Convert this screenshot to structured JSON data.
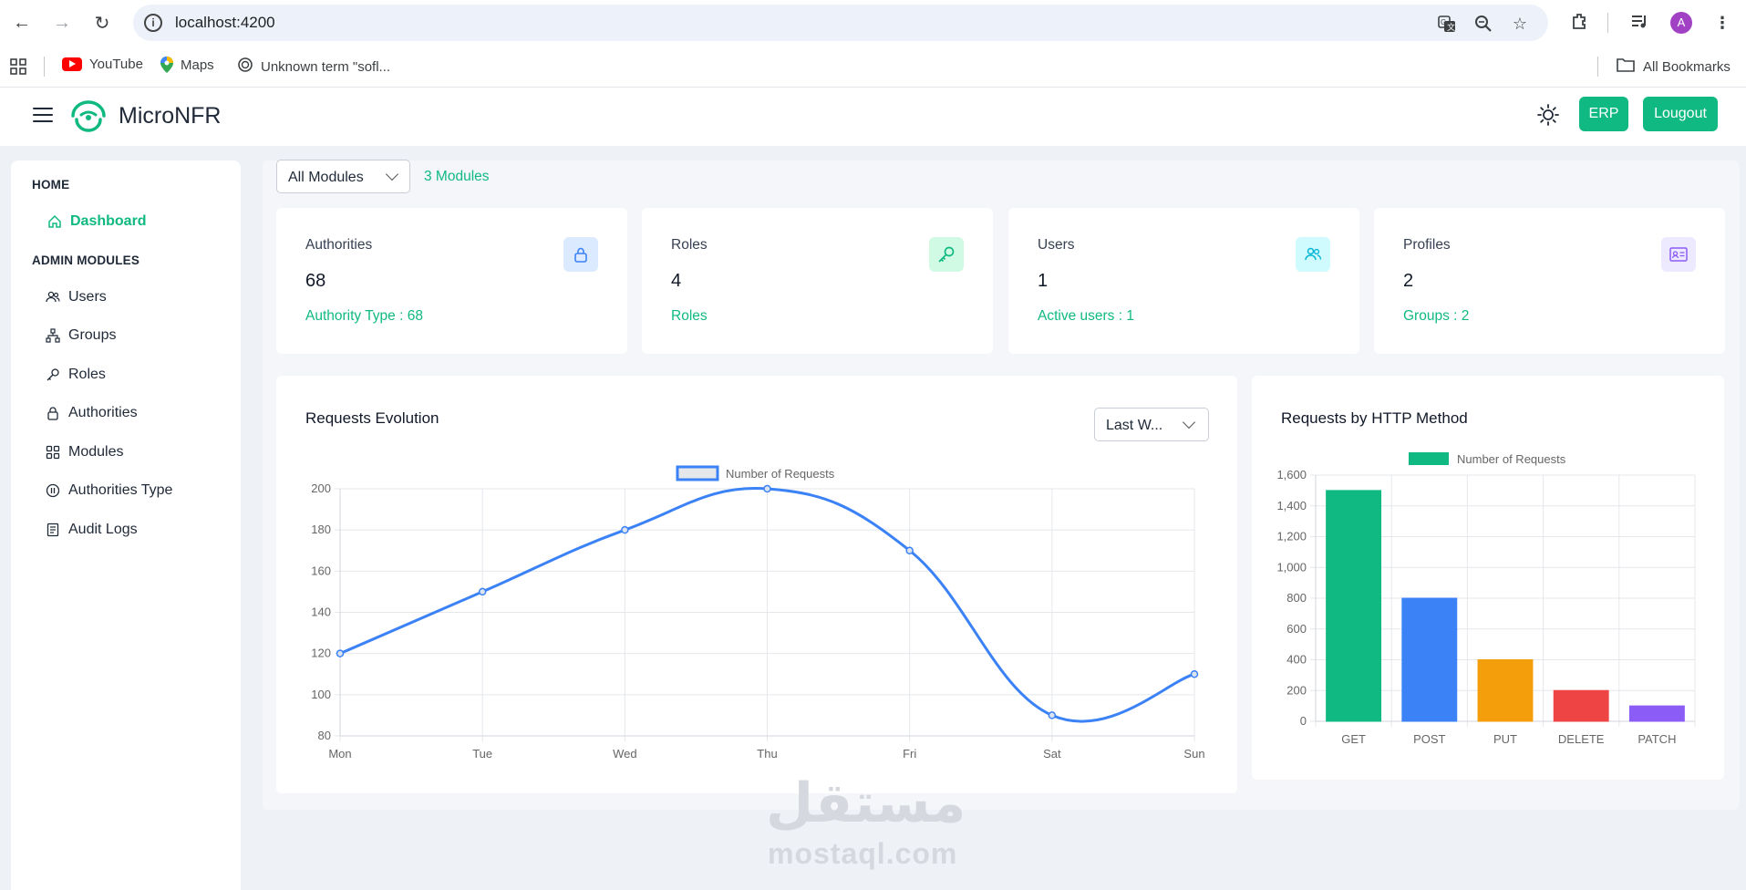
{
  "browser": {
    "url": "localhost:4200",
    "avatar_letter": "A",
    "bookmarks": [
      {
        "label": "YouTube",
        "icon": "youtube-icon"
      },
      {
        "label": "Maps",
        "icon": "maps-icon"
      },
      {
        "label": "Unknown term \"sofl...",
        "icon": "chatgpt-icon"
      }
    ],
    "all_bookmarks": "All Bookmarks"
  },
  "header": {
    "brand": "MicroNFR",
    "erp_label": "ERP",
    "logout_label": "Lougout",
    "accent": "#10b981"
  },
  "sidebar": {
    "home_title": "HOME",
    "dashboard": "Dashboard",
    "admin_title": "ADMIN MODULES",
    "items": [
      {
        "label": "Users",
        "icon": "users-icon"
      },
      {
        "label": "Groups",
        "icon": "groups-icon"
      },
      {
        "label": "Roles",
        "icon": "key-icon"
      },
      {
        "label": "Authorities",
        "icon": "lock-icon"
      },
      {
        "label": "Modules",
        "icon": "grid-icon"
      },
      {
        "label": "Authorities Type",
        "icon": "pause-circle-icon"
      },
      {
        "label": "Audit Logs",
        "icon": "document-icon"
      }
    ]
  },
  "filter": {
    "selected": "All Modules",
    "count": "3 Modules"
  },
  "stats": [
    {
      "label": "Authorities",
      "value": "68",
      "sub": "Authority Type : 68",
      "icon": "lock-icon",
      "badge_bg": "#dbeafe",
      "icon_color": "#3b82f6"
    },
    {
      "label": "Roles",
      "value": "4",
      "sub": "Roles",
      "icon": "key-icon",
      "badge_bg": "#d1fae5",
      "icon_color": "#10b981"
    },
    {
      "label": "Users",
      "value": "1",
      "sub": "Active users : 1",
      "icon": "users-icon",
      "badge_bg": "#cffafe",
      "icon_color": "#06b6d4"
    },
    {
      "label": "Profiles",
      "value": "2",
      "sub": "Groups : 2",
      "icon": "id-card-icon",
      "badge_bg": "#ede9fe",
      "icon_color": "#8b5cf6"
    }
  ],
  "chart_data": [
    {
      "type": "line",
      "title": "Requests Evolution",
      "range_selected": "Last W...",
      "categories": [
        "Mon",
        "Tue",
        "Wed",
        "Thu",
        "Fri",
        "Sat",
        "Sun"
      ],
      "series": [
        {
          "name": "Number of Requests",
          "values": [
            120,
            150,
            180,
            200,
            170,
            90,
            110
          ],
          "color": "#3b82f6"
        }
      ],
      "ylim": [
        80,
        200
      ],
      "yticks": [
        200,
        180,
        160,
        140,
        120,
        100,
        80
      ],
      "grid": true,
      "legend": "top-center"
    },
    {
      "type": "bar",
      "title": "Requests by HTTP Method",
      "categories": [
        "GET",
        "POST",
        "PUT",
        "DELETE",
        "PATCH"
      ],
      "series": [
        {
          "name": "Number of Requests",
          "values": [
            1500,
            800,
            400,
            200,
            100
          ]
        }
      ],
      "colors": [
        "#10b981",
        "#3b82f6",
        "#f59e0b",
        "#ef4444",
        "#8b5cf6"
      ],
      "ylim": [
        0,
        1600
      ],
      "yticks": [
        "1,600",
        "1,400",
        "1,200",
        "1,000",
        "800",
        "600",
        "400",
        "200",
        "0"
      ],
      "grid": true,
      "legend": "top-center"
    }
  ],
  "watermark": {
    "arabic": "مستقل",
    "latin": "mostaql.com"
  }
}
